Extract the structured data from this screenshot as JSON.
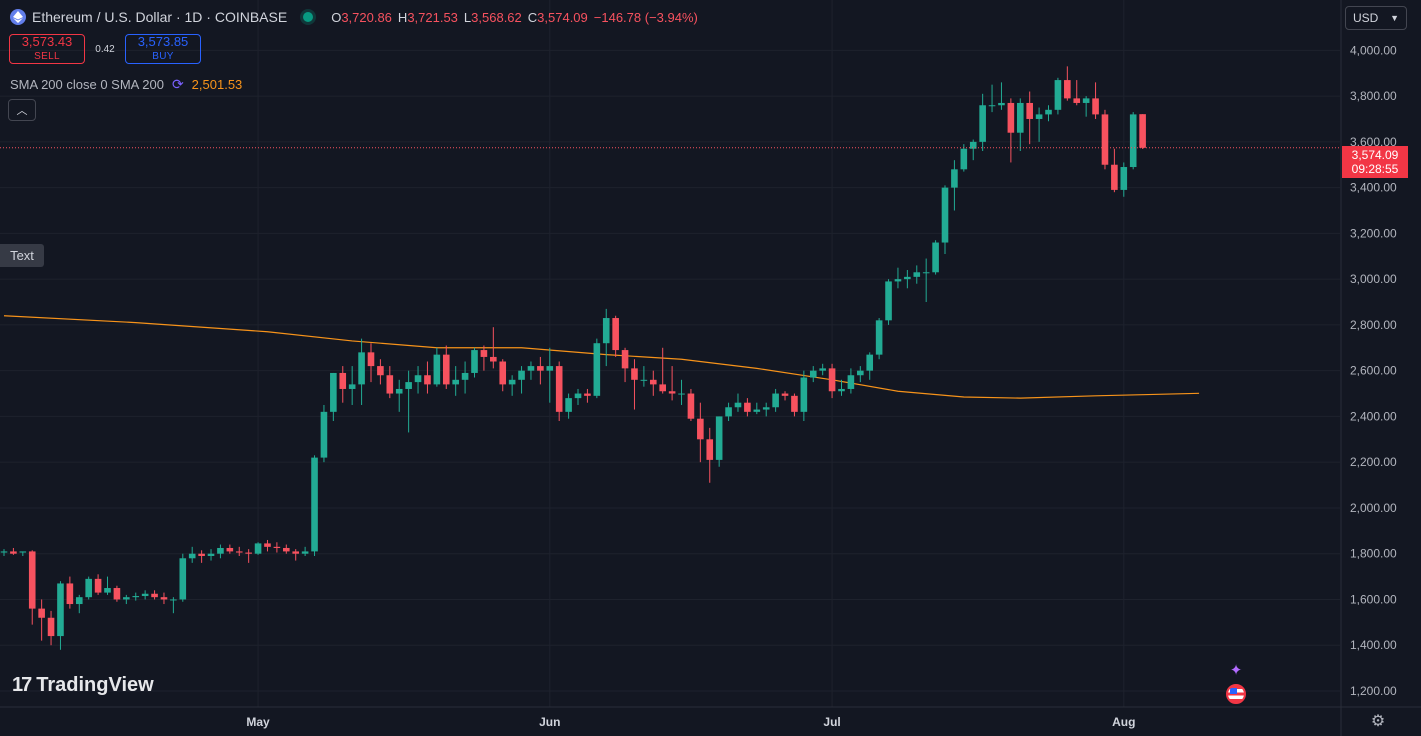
{
  "header": {
    "symbol_title": "Ethereum / U.S. Dollar · 1D · COINBASE",
    "open_label": "O",
    "open": "3,720.86",
    "high_label": "H",
    "high": "3,721.53",
    "low_label": "L",
    "low": "3,568.62",
    "close_label": "C",
    "close": "3,574.09",
    "change": "−146.78 (−3.94%)"
  },
  "trade": {
    "sell_price": "3,573.43",
    "sell_label": "SELL",
    "spread": "0.42",
    "buy_price": "3,573.85",
    "buy_label": "BUY"
  },
  "indicator": {
    "label": "SMA 200 close 0 SMA 200",
    "value": "2,501.53"
  },
  "text_tag": "Text",
  "currency": "USD",
  "last_price": {
    "price": "3,574.09",
    "countdown": "09:28:55"
  },
  "brand": "TradingView",
  "colors": {
    "up": "#22ab94",
    "down": "#f7525f",
    "sma": "#f7931a",
    "bg": "#131722",
    "grid": "#1e222d"
  },
  "chart_data": {
    "type": "candlestick",
    "y_axis_ticks": [
      "1,200.00",
      "1,400.00",
      "1,600.00",
      "1,800.00",
      "2,000.00",
      "2,200.00",
      "2,400.00",
      "2,600.00",
      "2,800.00",
      "3,000.00",
      "3,200.00",
      "3,400.00",
      "3,600.00",
      "3,800.00",
      "4,000.00"
    ],
    "y_ticks_values": [
      1200,
      1400,
      1600,
      1800,
      2000,
      2200,
      2400,
      2600,
      2800,
      3000,
      3200,
      3400,
      3600,
      3800,
      4000
    ],
    "ylim": [
      1130,
      4220
    ],
    "x_axis_labels": [
      {
        "label": "May",
        "index": 27
      },
      {
        "label": "Jun",
        "index": 58
      },
      {
        "label": "Jul",
        "index": 88
      },
      {
        "label": "Aug",
        "index": 119
      }
    ],
    "candles": [
      [
        1805,
        1820,
        1790,
        1810
      ],
      [
        1810,
        1825,
        1795,
        1800
      ],
      [
        1805,
        1810,
        1790,
        1810
      ],
      [
        1810,
        1815,
        1490,
        1560
      ],
      [
        1560,
        1600,
        1420,
        1520
      ],
      [
        1520,
        1550,
        1400,
        1440
      ],
      [
        1440,
        1680,
        1380,
        1670
      ],
      [
        1670,
        1700,
        1560,
        1580
      ],
      [
        1580,
        1620,
        1540,
        1610
      ],
      [
        1610,
        1700,
        1600,
        1690
      ],
      [
        1690,
        1710,
        1620,
        1630
      ],
      [
        1630,
        1700,
        1620,
        1650
      ],
      [
        1650,
        1660,
        1590,
        1600
      ],
      [
        1600,
        1620,
        1580,
        1610
      ],
      [
        1610,
        1630,
        1595,
        1615
      ],
      [
        1615,
        1640,
        1600,
        1625
      ],
      [
        1625,
        1640,
        1600,
        1610
      ],
      [
        1610,
        1630,
        1580,
        1600
      ],
      [
        1600,
        1610,
        1540,
        1600
      ],
      [
        1600,
        1800,
        1590,
        1780
      ],
      [
        1780,
        1830,
        1760,
        1800
      ],
      [
        1800,
        1815,
        1760,
        1790
      ],
      [
        1790,
        1820,
        1770,
        1800
      ],
      [
        1800,
        1840,
        1780,
        1825
      ],
      [
        1825,
        1840,
        1800,
        1810
      ],
      [
        1810,
        1830,
        1790,
        1805
      ],
      [
        1805,
        1820,
        1760,
        1800
      ],
      [
        1800,
        1850,
        1795,
        1845
      ],
      [
        1845,
        1860,
        1810,
        1830
      ],
      [
        1830,
        1850,
        1805,
        1825
      ],
      [
        1825,
        1840,
        1800,
        1810
      ],
      [
        1810,
        1820,
        1770,
        1800
      ],
      [
        1800,
        1830,
        1790,
        1810
      ],
      [
        1810,
        2230,
        1790,
        2220
      ],
      [
        2220,
        2450,
        2200,
        2420
      ],
      [
        2420,
        2590,
        2380,
        2590
      ],
      [
        2590,
        2620,
        2460,
        2520
      ],
      [
        2520,
        2620,
        2450,
        2540
      ],
      [
        2540,
        2740,
        2450,
        2680
      ],
      [
        2680,
        2720,
        2550,
        2620
      ],
      [
        2620,
        2650,
        2540,
        2580
      ],
      [
        2580,
        2620,
        2480,
        2500
      ],
      [
        2500,
        2560,
        2420,
        2520
      ],
      [
        2520,
        2600,
        2330,
        2550
      ],
      [
        2550,
        2620,
        2500,
        2580
      ],
      [
        2580,
        2640,
        2500,
        2540
      ],
      [
        2540,
        2700,
        2530,
        2670
      ],
      [
        2670,
        2710,
        2520,
        2540
      ],
      [
        2540,
        2620,
        2490,
        2560
      ],
      [
        2560,
        2640,
        2500,
        2590
      ],
      [
        2590,
        2700,
        2570,
        2690
      ],
      [
        2690,
        2710,
        2600,
        2660
      ],
      [
        2660,
        2790,
        2610,
        2640
      ],
      [
        2640,
        2650,
        2510,
        2540
      ],
      [
        2540,
        2580,
        2490,
        2560
      ],
      [
        2560,
        2620,
        2500,
        2600
      ],
      [
        2600,
        2640,
        2560,
        2620
      ],
      [
        2620,
        2660,
        2540,
        2600
      ],
      [
        2600,
        2700,
        2460,
        2620
      ],
      [
        2620,
        2640,
        2380,
        2420
      ],
      [
        2420,
        2500,
        2390,
        2480
      ],
      [
        2480,
        2520,
        2450,
        2500
      ],
      [
        2500,
        2520,
        2460,
        2490
      ],
      [
        2490,
        2740,
        2480,
        2720
      ],
      [
        2720,
        2870,
        2620,
        2830
      ],
      [
        2830,
        2840,
        2660,
        2690
      ],
      [
        2690,
        2700,
        2550,
        2610
      ],
      [
        2610,
        2650,
        2430,
        2560
      ],
      [
        2560,
        2620,
        2530,
        2560
      ],
      [
        2560,
        2600,
        2490,
        2540
      ],
      [
        2540,
        2700,
        2500,
        2510
      ],
      [
        2510,
        2620,
        2470,
        2500
      ],
      [
        2500,
        2560,
        2450,
        2500
      ],
      [
        2500,
        2520,
        2380,
        2390
      ],
      [
        2390,
        2460,
        2200,
        2300
      ],
      [
        2300,
        2350,
        2110,
        2210
      ],
      [
        2210,
        2400,
        2180,
        2400
      ],
      [
        2400,
        2460,
        2380,
        2440
      ],
      [
        2440,
        2500,
        2420,
        2460
      ],
      [
        2460,
        2480,
        2400,
        2420
      ],
      [
        2420,
        2460,
        2410,
        2430
      ],
      [
        2430,
        2460,
        2400,
        2440
      ],
      [
        2440,
        2520,
        2420,
        2500
      ],
      [
        2500,
        2510,
        2470,
        2490
      ],
      [
        2490,
        2500,
        2400,
        2420
      ],
      [
        2420,
        2600,
        2380,
        2570
      ],
      [
        2570,
        2620,
        2550,
        2600
      ],
      [
        2600,
        2630,
        2580,
        2610
      ],
      [
        2610,
        2630,
        2480,
        2510
      ],
      [
        2510,
        2560,
        2490,
        2520
      ],
      [
        2520,
        2610,
        2500,
        2580
      ],
      [
        2580,
        2620,
        2550,
        2600
      ],
      [
        2600,
        2680,
        2560,
        2670
      ],
      [
        2670,
        2830,
        2650,
        2820
      ],
      [
        2820,
        3000,
        2800,
        2990
      ],
      [
        2990,
        3050,
        2960,
        3000
      ],
      [
        3000,
        3040,
        2960,
        3010
      ],
      [
        3010,
        3060,
        2980,
        3030
      ],
      [
        3030,
        3090,
        2900,
        3030
      ],
      [
        3030,
        3170,
        3020,
        3160
      ],
      [
        3160,
        3410,
        3110,
        3400
      ],
      [
        3400,
        3520,
        3300,
        3480
      ],
      [
        3480,
        3590,
        3470,
        3570
      ],
      [
        3570,
        3610,
        3520,
        3600
      ],
      [
        3600,
        3810,
        3560,
        3760
      ],
      [
        3760,
        3850,
        3730,
        3760
      ],
      [
        3760,
        3860,
        3740,
        3770
      ],
      [
        3770,
        3790,
        3510,
        3640
      ],
      [
        3640,
        3790,
        3560,
        3770
      ],
      [
        3770,
        3820,
        3590,
        3700
      ],
      [
        3700,
        3750,
        3600,
        3720
      ],
      [
        3720,
        3760,
        3690,
        3740
      ],
      [
        3740,
        3880,
        3720,
        3870
      ],
      [
        3870,
        3930,
        3780,
        3790
      ],
      [
        3790,
        3870,
        3760,
        3770
      ],
      [
        3770,
        3800,
        3710,
        3790
      ],
      [
        3790,
        3860,
        3700,
        3720
      ],
      [
        3720,
        3740,
        3480,
        3500
      ],
      [
        3500,
        3570,
        3380,
        3390
      ],
      [
        3390,
        3510,
        3360,
        3490
      ],
      [
        3490,
        3730,
        3480,
        3720
      ],
      [
        3721,
        3721,
        3569,
        3574
      ]
    ],
    "sma200": [
      [
        0,
        2840
      ],
      [
        14,
        2810
      ],
      [
        28,
        2770
      ],
      [
        37,
        2730
      ],
      [
        46,
        2700
      ],
      [
        55,
        2700
      ],
      [
        64,
        2670
      ],
      [
        72,
        2650
      ],
      [
        80,
        2610
      ],
      [
        88,
        2560
      ],
      [
        95,
        2510
      ],
      [
        102,
        2485
      ],
      [
        108,
        2480
      ],
      [
        116,
        2490
      ],
      [
        121,
        2495
      ],
      [
        127,
        2501
      ]
    ]
  }
}
